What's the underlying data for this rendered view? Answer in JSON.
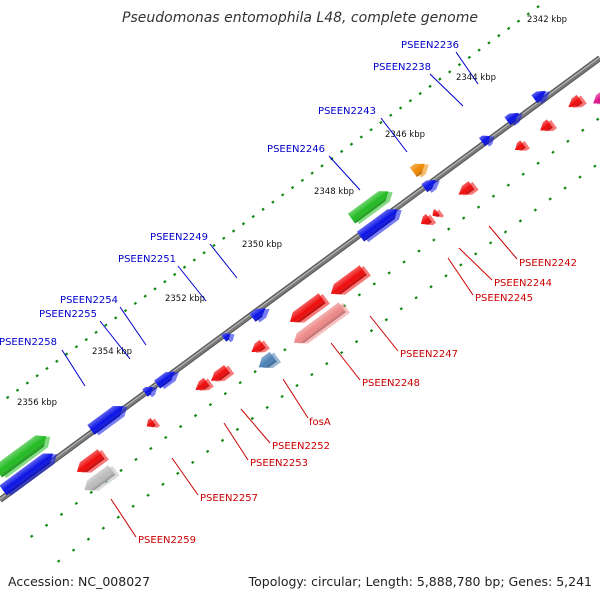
{
  "title": "Pseudomonas entomophila L48, complete genome",
  "footer": {
    "accession": "Accession: NC_008027",
    "summary": "Topology: circular; Length: 5,888,780 bp; Genes: 5,241"
  },
  "colors": {
    "backbone": "#7a7a7a",
    "forward_label": "#0000cc",
    "reverse_label": "#cc0000",
    "tick": "#118811",
    "blue": "#0a12e6",
    "red": "#ee0a0a",
    "green": "#22bb22",
    "orange": "#ee8800",
    "steelblue": "#4a7fb5",
    "pink": "#ee8888",
    "gray": "#bbbbbb",
    "magenta": "#dd1188"
  },
  "ruler": [
    {
      "label": "2342 kbp"
    },
    {
      "label": "2344 kbp"
    },
    {
      "label": "2346 kbp"
    },
    {
      "label": "2348 kbp"
    },
    {
      "label": "2350 kbp"
    },
    {
      "label": "2352 kbp"
    },
    {
      "label": "2354 kbp"
    },
    {
      "label": "2356 kbp"
    }
  ],
  "forward_genes": [
    {
      "name": "PSEEN2236"
    },
    {
      "name": "PSEEN2238"
    },
    {
      "name": "PSEEN2243"
    },
    {
      "name": "PSEEN2246"
    },
    {
      "name": "PSEEN2249"
    },
    {
      "name": "PSEEN2251"
    },
    {
      "name": "PSEEN2254"
    },
    {
      "name": "PSEEN2255"
    },
    {
      "name": "PSEEN2258"
    }
  ],
  "reverse_genes": [
    {
      "name": "PSEEN2242"
    },
    {
      "name": "PSEEN2244"
    },
    {
      "name": "PSEEN2245"
    },
    {
      "name": "PSEEN2247"
    },
    {
      "name": "PSEEN2248"
    },
    {
      "name": "fosA"
    },
    {
      "name": "PSEEN2252"
    },
    {
      "name": "PSEEN2253"
    },
    {
      "name": "PSEEN2257"
    },
    {
      "name": "PSEEN2259"
    }
  ]
}
